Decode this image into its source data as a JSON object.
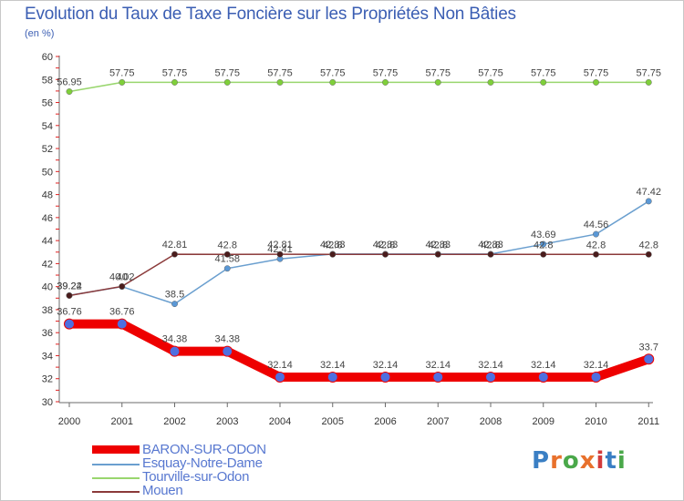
{
  "title": "Evolution du Taux de Taxe Foncière sur les Propriétés Non Bâties",
  "unit": "(en %)",
  "logo": {
    "text": "Proxiti",
    "colors": [
      "#3a7fc4",
      "#e8712c",
      "#4aa84a",
      "#e8712c",
      "#d33b3b",
      "#3a7fc4",
      "#4aa84a"
    ]
  },
  "chart_data": {
    "type": "line",
    "title": "Evolution du Taux de Taxe Foncière sur les Propriétés Non Bâties",
    "ylabel": "(en %)",
    "xlabel": "",
    "categories": [
      "2000",
      "2001",
      "2002",
      "2003",
      "2004",
      "2005",
      "2006",
      "2007",
      "2008",
      "2009",
      "2010",
      "2011"
    ],
    "ylim": [
      30,
      60
    ],
    "yticks": [
      30,
      32,
      34,
      36,
      38,
      40,
      42,
      44,
      46,
      48,
      50,
      52,
      54,
      56,
      58,
      60
    ],
    "grid": false,
    "legend_position": "bottom-left",
    "series": [
      {
        "name": "BARON-SUR-ODON",
        "color": "#ee0000",
        "marker": "#4f6fe0",
        "thick": true,
        "values": [
          36.76,
          36.76,
          34.38,
          34.38,
          32.14,
          32.14,
          32.14,
          32.14,
          32.14,
          32.14,
          32.14,
          33.7
        ],
        "labels": [
          "36.76",
          "36.76",
          "34.38",
          "34.38",
          "32.14",
          "32.14",
          "32.14",
          "32.14",
          "32.14",
          "32.14",
          "32.14",
          "33.7"
        ]
      },
      {
        "name": "Esquay-Notre-Dame",
        "color": "#6a9fcf",
        "marker": "#5a98d6",
        "thick": false,
        "values": [
          39.24,
          40.0,
          38.5,
          41.58,
          42.41,
          42.83,
          42.83,
          42.83,
          42.83,
          43.69,
          44.56,
          47.42
        ],
        "labels": [
          "39.24",
          "40",
          "38.5",
          "41.58",
          "42.41",
          "42.83",
          "42.83",
          "42.83",
          "42.83",
          "43.69",
          "44.56",
          "47.42"
        ]
      },
      {
        "name": "Tourville-sur-Odon",
        "color": "#99d66e",
        "marker": "#7fcf3a",
        "thick": false,
        "values": [
          56.95,
          57.75,
          57.75,
          57.75,
          57.75,
          57.75,
          57.75,
          57.75,
          57.75,
          57.75,
          57.75,
          57.75
        ],
        "labels": [
          "56.95",
          "57.75",
          "57.75",
          "57.75",
          "57.75",
          "57.75",
          "57.75",
          "57.75",
          "57.75",
          "57.75",
          "57.75",
          "57.75"
        ]
      },
      {
        "name": "Mouen",
        "color": "#8b3a3a",
        "marker": "#4a1c1c",
        "thick": false,
        "values": [
          39.22,
          40.02,
          42.81,
          42.8,
          42.81,
          42.8,
          42.8,
          42.8,
          42.8,
          42.8,
          42.8,
          42.8
        ],
        "labels": [
          "39.22",
          "40.02",
          "42.81",
          "42.8",
          "42.81",
          "42.8",
          "42.8",
          "42.8",
          "42.8",
          "42.8",
          "42.8",
          "42.8"
        ]
      }
    ]
  }
}
